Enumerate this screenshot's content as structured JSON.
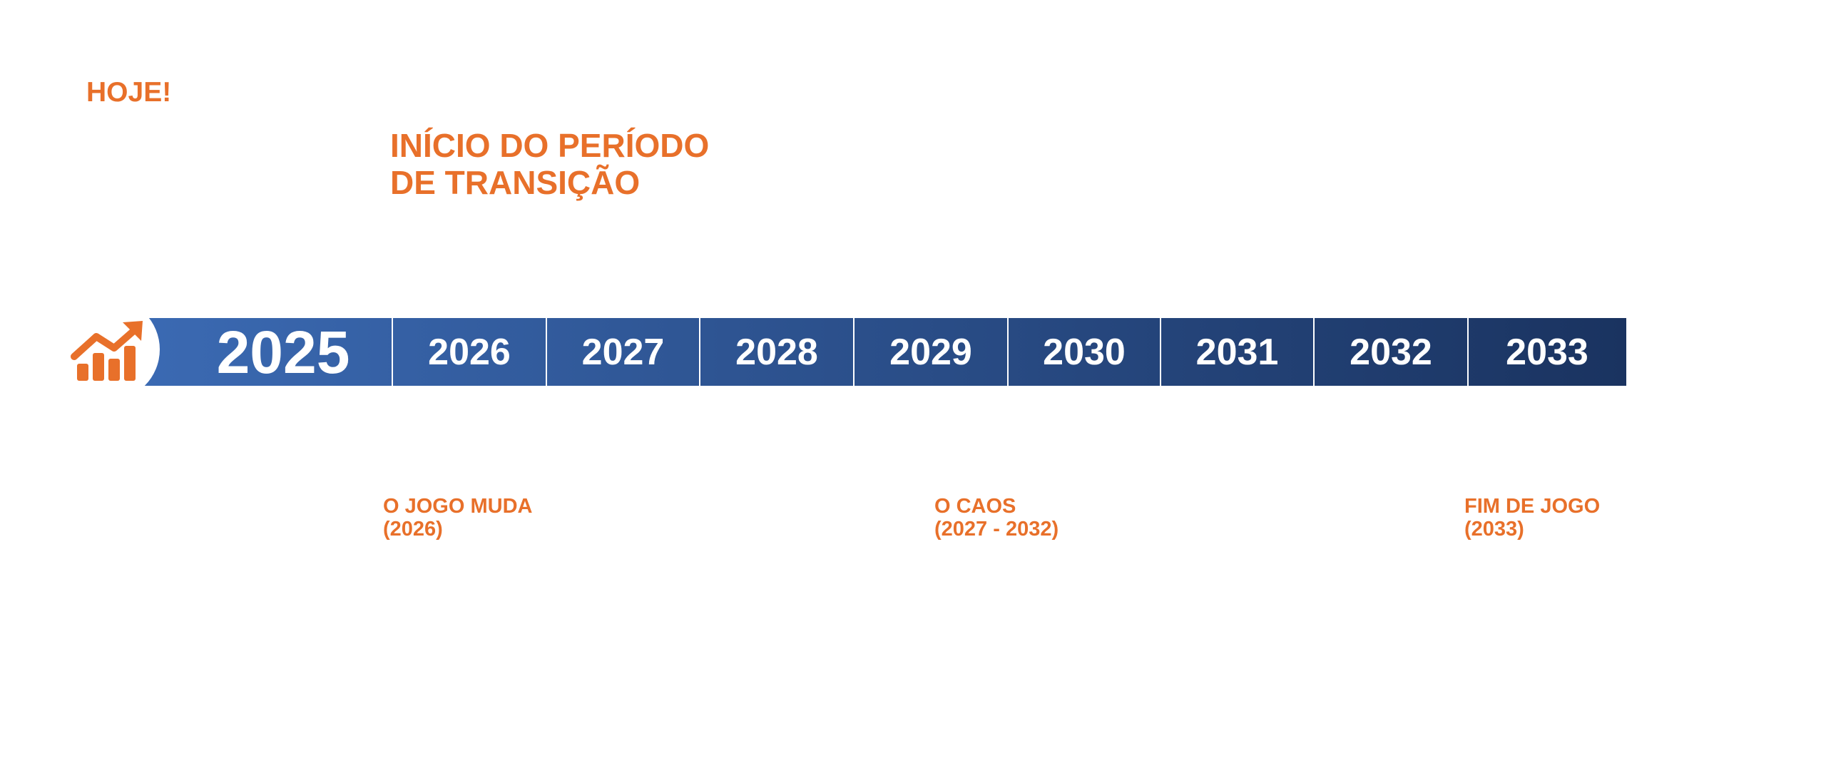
{
  "today": {
    "label": "HOJE!"
  },
  "transition": {
    "lines": [
      "INÍCIO DO PERÍODO",
      "DE TRANSIÇÃO"
    ]
  },
  "timeline": {
    "years": [
      "2025",
      "2026",
      "2027",
      "2028",
      "2029",
      "2030",
      "2031",
      "2032",
      "2033"
    ]
  },
  "milestones": [
    {
      "title": "O JOGO MUDA",
      "period": "(2026)"
    },
    {
      "title": "O CAOS",
      "period": "(2027 - 2032)"
    },
    {
      "title": "FIM DE JOGO",
      "period": "(2033)"
    }
  ]
}
